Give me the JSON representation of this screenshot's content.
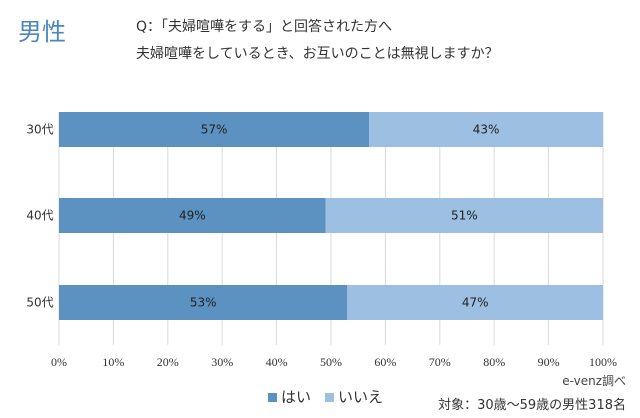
{
  "header": {
    "gender": "男性",
    "question_line1": "Q：「夫婦喧嘩をする」と回答された方へ",
    "question_line2": "夫婦喧嘩をしているとき、お互いのことは無視しますか？"
  },
  "chart_data": {
    "type": "bar",
    "orientation": "horizontal",
    "stacked": "percent",
    "categories": [
      "30代",
      "40代",
      "50代"
    ],
    "series": [
      {
        "name": "はい",
        "values": [
          57,
          49,
          53
        ],
        "labels": [
          "57%",
          "49%",
          "53%"
        ],
        "color": "#5b92c1"
      },
      {
        "name": "いいえ",
        "values": [
          43,
          51,
          47
        ],
        "labels": [
          "43%",
          "51%",
          "47%"
        ],
        "color": "#9dbfe2"
      }
    ],
    "xlim": [
      0,
      100
    ],
    "xticks": [
      "0%",
      "10%",
      "20%",
      "30%",
      "40%",
      "50%",
      "60%",
      "70%",
      "80%",
      "90%",
      "100%"
    ],
    "grid": true,
    "legend": "bottom"
  },
  "footer": {
    "source": "e-venz調べ",
    "target": "対象：30歳〜59歳の男性318名"
  }
}
